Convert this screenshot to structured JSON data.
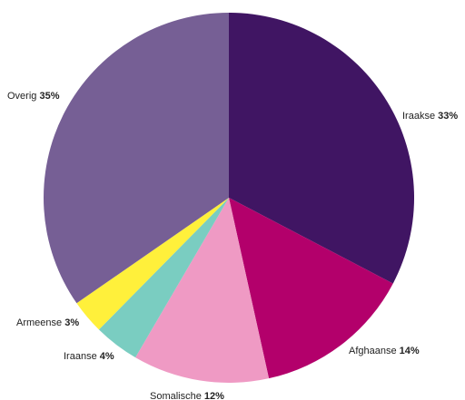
{
  "chart_data": {
    "type": "pie",
    "title": "",
    "start_angle_deg": 0,
    "direction": "clockwise",
    "slices": [
      {
        "label": "Iraakse",
        "value": 33,
        "value_label": "33%",
        "color": "#401563"
      },
      {
        "label": "Afghaanse",
        "value": 14,
        "value_label": "14%",
        "color": "#b3006b"
      },
      {
        "label": "Somalische",
        "value": 12,
        "value_label": "12%",
        "color": "#ef9ac4"
      },
      {
        "label": "Iraanse",
        "value": 4,
        "value_label": "4%",
        "color": "#7acdc1"
      },
      {
        "label": "Armeense",
        "value": 3,
        "value_label": "3%",
        "color": "#fff03b"
      },
      {
        "label": "Overig",
        "value": 35,
        "value_label": "35%",
        "color": "#765f95"
      }
    ]
  }
}
